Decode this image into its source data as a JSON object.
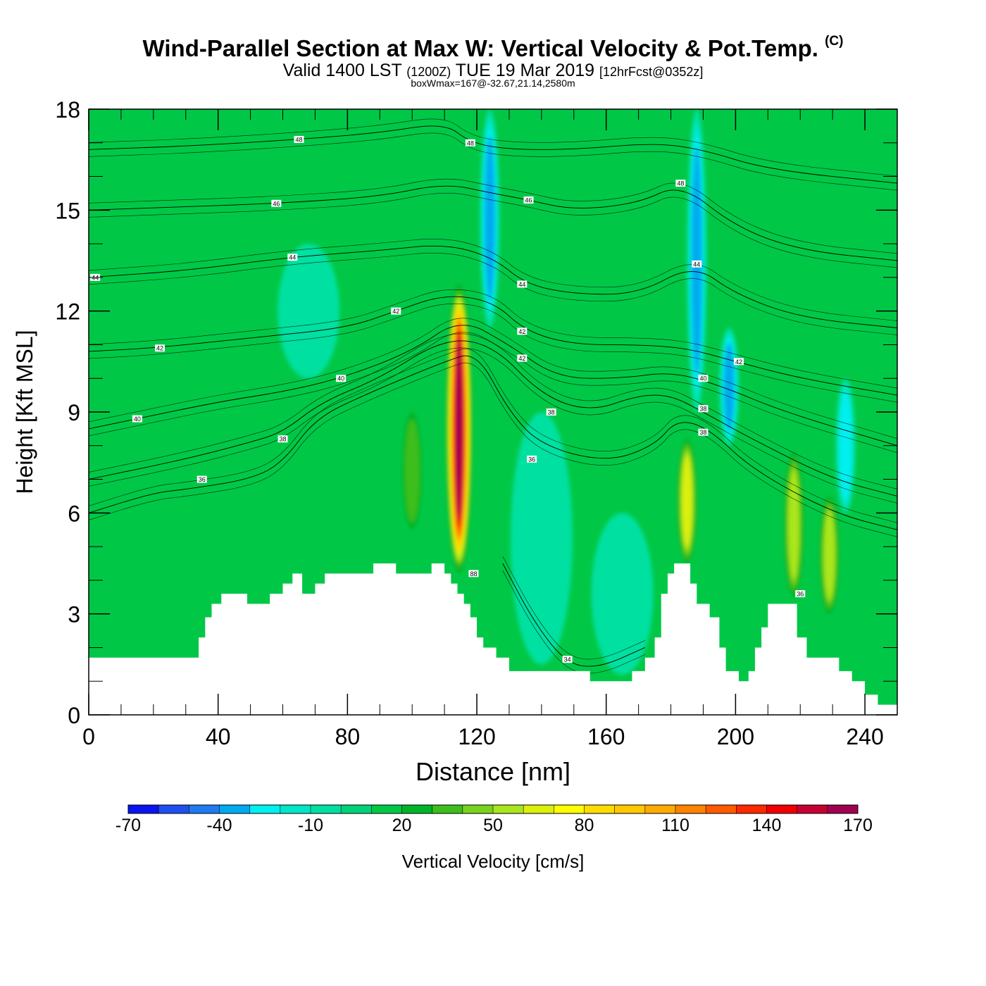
{
  "header": {
    "title": "Wind-Parallel Section at Max W: Vertical Velocity & Pot.Temp.",
    "title_mark": "(C)",
    "valid_prefix": "Valid 1400 LST",
    "valid_utc": "(1200Z)",
    "valid_date": "TUE 19 Mar 2019",
    "forecast_tag": "[12hrFcst@0352z]",
    "box_wmax": "boxWmax=167@-32.67,21.14,2580m"
  },
  "chart_data": {
    "type": "heatmap",
    "xlabel": "Distance [nm]",
    "ylabel": "Height [Kft MSL]",
    "xlim": [
      0,
      250
    ],
    "ylim": [
      0,
      18
    ],
    "xticks": [
      "0",
      "40",
      "80",
      "120",
      "160",
      "200",
      "240"
    ],
    "xtick_values": [
      0,
      40,
      80,
      120,
      160,
      200,
      240
    ],
    "yticks": [
      "0",
      "3",
      "6",
      "9",
      "12",
      "15",
      "18"
    ],
    "ytick_values": [
      0,
      3,
      6,
      9,
      12,
      15,
      18
    ],
    "colorbar": {
      "label": "Vertical Velocity [cm/s]",
      "tick_labels": [
        "-70",
        "-40",
        "-10",
        "20",
        "50",
        "80",
        "110",
        "140",
        "170"
      ],
      "tick_values": [
        -70,
        -40,
        -10,
        20,
        50,
        80,
        110,
        140,
        170
      ],
      "levels": [
        -70,
        -60,
        -50,
        -40,
        -30,
        -20,
        -10,
        0,
        10,
        20,
        30,
        40,
        50,
        60,
        70,
        80,
        90,
        100,
        110,
        120,
        130,
        140,
        150,
        160,
        170
      ],
      "colors": [
        "#0a14f0",
        "#1e50f0",
        "#1e7cf0",
        "#00aaf0",
        "#00f0f0",
        "#00e6c8",
        "#00e0a0",
        "#00d278",
        "#00c846",
        "#00b428",
        "#3cbe1e",
        "#78d21e",
        "#aae61e",
        "#dcf00a",
        "#ffff00",
        "#ffdc00",
        "#ffc800",
        "#ffaa00",
        "#ff8200",
        "#ff5a00",
        "#ff2800",
        "#f00000",
        "#c80032",
        "#a00050"
      ]
    },
    "background_color": "#00c846",
    "terrain_color": "#ffffff",
    "vertical_velocity_features": [
      {
        "kind": "updraft_core",
        "x": 114.5,
        "y_bottom": 4.2,
        "y_top": 12.8,
        "peak_cm_s": 167
      },
      {
        "kind": "updraft",
        "x": 185,
        "y_bottom": 4.5,
        "y_top": 8.2,
        "peak_cm_s": 60
      },
      {
        "kind": "updraft",
        "x": 218,
        "y_bottom": 3.5,
        "y_top": 7.8,
        "peak_cm_s": 55
      },
      {
        "kind": "updraft",
        "x": 229,
        "y_bottom": 3.0,
        "y_top": 6.5,
        "peak_cm_s": 50
      },
      {
        "kind": "updraft",
        "x": 100,
        "y_bottom": 5.5,
        "y_top": 9.0,
        "peak_cm_s": 30
      },
      {
        "kind": "downdraft",
        "x": 124,
        "y_bottom": 11.5,
        "y_top": 18,
        "peak_cm_s": -40
      },
      {
        "kind": "downdraft",
        "x": 188,
        "y_bottom": 9.0,
        "y_top": 18,
        "peak_cm_s": -40
      },
      {
        "kind": "downdraft",
        "x": 198,
        "y_bottom": 8.0,
        "y_top": 11.5,
        "peak_cm_s": -40
      },
      {
        "kind": "downdraft",
        "x": 234,
        "y_bottom": 6.0,
        "y_top": 10.0,
        "peak_cm_s": -30
      },
      {
        "kind": "downdraft_weak",
        "x": 140,
        "y_bottom": 1.5,
        "y_top": 9.0,
        "peak_cm_s": -10
      },
      {
        "kind": "downdraft_weak",
        "x": 165,
        "y_bottom": 1.2,
        "y_top": 6.0,
        "peak_cm_s": -10
      },
      {
        "kind": "downdraft_weak",
        "x": 68,
        "y_bottom": 10.0,
        "y_top": 14.0,
        "peak_cm_s": -10
      }
    ],
    "terrain_profile": [
      [
        0,
        1.7
      ],
      [
        34,
        1.7
      ],
      [
        34,
        2.3
      ],
      [
        36,
        2.3
      ],
      [
        36,
        2.9
      ],
      [
        38,
        2.9
      ],
      [
        38,
        3.3
      ],
      [
        41,
        3.3
      ],
      [
        41,
        3.6
      ],
      [
        49,
        3.6
      ],
      [
        49,
        3.3
      ],
      [
        56,
        3.3
      ],
      [
        56,
        3.6
      ],
      [
        60,
        3.6
      ],
      [
        60,
        3.9
      ],
      [
        63,
        3.9
      ],
      [
        63,
        4.2
      ],
      [
        66,
        4.2
      ],
      [
        66,
        3.6
      ],
      [
        70,
        3.6
      ],
      [
        70,
        3.9
      ],
      [
        73,
        3.9
      ],
      [
        73,
        4.2
      ],
      [
        88,
        4.2
      ],
      [
        88,
        4.5
      ],
      [
        95,
        4.5
      ],
      [
        95,
        4.2
      ],
      [
        106,
        4.2
      ],
      [
        106,
        4.5
      ],
      [
        110,
        4.5
      ],
      [
        110,
        4.2
      ],
      [
        112,
        4.2
      ],
      [
        112,
        3.9
      ],
      [
        114,
        3.9
      ],
      [
        114,
        3.6
      ],
      [
        116,
        3.6
      ],
      [
        116,
        3.3
      ],
      [
        118,
        3.3
      ],
      [
        118,
        2.9
      ],
      [
        120,
        2.9
      ],
      [
        120,
        2.3
      ],
      [
        122,
        2.3
      ],
      [
        122,
        2.0
      ],
      [
        126,
        2.0
      ],
      [
        126,
        1.7
      ],
      [
        130,
        1.7
      ],
      [
        130,
        1.3
      ],
      [
        155,
        1.3
      ],
      [
        155,
        1.0
      ],
      [
        168,
        1.0
      ],
      [
        168,
        1.3
      ],
      [
        172,
        1.3
      ],
      [
        172,
        1.7
      ],
      [
        175,
        1.7
      ],
      [
        175,
        2.3
      ],
      [
        177,
        2.3
      ],
      [
        177,
        3.6
      ],
      [
        179,
        3.6
      ],
      [
        179,
        4.2
      ],
      [
        181,
        4.2
      ],
      [
        181,
        4.5
      ],
      [
        186,
        4.5
      ],
      [
        186,
        3.9
      ],
      [
        188,
        3.9
      ],
      [
        188,
        3.3
      ],
      [
        192,
        3.3
      ],
      [
        192,
        2.9
      ],
      [
        195,
        2.9
      ],
      [
        195,
        2.0
      ],
      [
        197,
        2.0
      ],
      [
        197,
        1.3
      ],
      [
        201,
        1.3
      ],
      [
        201,
        1.0
      ],
      [
        204,
        1.0
      ],
      [
        204,
        1.3
      ],
      [
        206,
        1.3
      ],
      [
        206,
        2.0
      ],
      [
        208,
        2.0
      ],
      [
        208,
        2.6
      ],
      [
        210,
        2.6
      ],
      [
        210,
        3.3
      ],
      [
        219,
        3.3
      ],
      [
        219,
        2.3
      ],
      [
        222,
        2.3
      ],
      [
        222,
        1.7
      ],
      [
        232,
        1.7
      ],
      [
        232,
        1.3
      ],
      [
        236,
        1.3
      ],
      [
        236,
        1.0
      ],
      [
        240,
        1.0
      ],
      [
        240,
        0.6
      ],
      [
        244,
        0.6
      ],
      [
        244,
        0.3
      ],
      [
        250,
        0.3
      ]
    ],
    "theta_contours": [
      {
        "label": "34",
        "points": [
          [
            128,
            4.5
          ],
          [
            138,
            2.7
          ],
          [
            148,
            1.5
          ],
          [
            158,
            1.4
          ],
          [
            172,
            2.0
          ]
        ],
        "label_at": [
          148,
          1.65
        ]
      },
      {
        "label": "36",
        "points": [
          [
            0,
            6.0
          ],
          [
            20,
            6.6
          ],
          [
            30,
            6.7
          ],
          [
            50,
            7.0
          ],
          [
            60,
            7.5
          ],
          [
            70,
            8.8
          ],
          [
            85,
            9.5
          ],
          [
            110,
            10.5
          ],
          [
            120,
            10.8
          ],
          [
            130,
            9.0
          ],
          [
            140,
            8.0
          ],
          [
            160,
            7.5
          ],
          [
            175,
            8.0
          ],
          [
            182,
            8.8
          ],
          [
            192,
            8.5
          ],
          [
            205,
            7.3
          ],
          [
            230,
            6.0
          ],
          [
            250,
            5.5
          ]
        ],
        "label_at": [
          35,
          7.0
        ]
      },
      {
        "label": "38",
        "points": [
          [
            0,
            7.0
          ],
          [
            30,
            7.6
          ],
          [
            50,
            8.1
          ],
          [
            60,
            8.4
          ],
          [
            72,
            9.3
          ],
          [
            90,
            10.0
          ],
          [
            110,
            11.2
          ],
          [
            125,
            11.0
          ],
          [
            140,
            9.5
          ],
          [
            155,
            9.0
          ],
          [
            170,
            9.5
          ],
          [
            180,
            9.5
          ],
          [
            190,
            9.0
          ],
          [
            205,
            8.2
          ],
          [
            230,
            7.0
          ],
          [
            250,
            6.5
          ]
        ],
        "label_at": [
          60,
          8.2
        ]
      },
      {
        "label": "40",
        "points": [
          [
            0,
            8.5
          ],
          [
            15,
            8.8
          ],
          [
            40,
            9.3
          ],
          [
            60,
            9.6
          ],
          [
            78,
            10.0
          ],
          [
            100,
            10.8
          ],
          [
            115,
            11.8
          ],
          [
            130,
            11.0
          ],
          [
            145,
            10.0
          ],
          [
            165,
            10.0
          ],
          [
            180,
            10.2
          ],
          [
            195,
            9.8
          ],
          [
            215,
            9.0
          ],
          [
            250,
            8.0
          ]
        ],
        "label_at": [
          78,
          10.0
        ]
      },
      {
        "label": "42",
        "points": [
          [
            0,
            10.8
          ],
          [
            20,
            10.9
          ],
          [
            50,
            11.2
          ],
          [
            80,
            11.5
          ],
          [
            95,
            12.0
          ],
          [
            110,
            12.5
          ],
          [
            125,
            12.3
          ],
          [
            135,
            11.4
          ],
          [
            150,
            11.0
          ],
          [
            170,
            11.0
          ],
          [
            185,
            10.9
          ],
          [
            200,
            10.5
          ],
          [
            220,
            10.0
          ],
          [
            250,
            9.5
          ]
        ],
        "label_at": [
          95,
          12.0
        ]
      },
      {
        "label": "44",
        "points": [
          [
            0,
            13.0
          ],
          [
            30,
            13.2
          ],
          [
            62,
            13.6
          ],
          [
            90,
            13.8
          ],
          [
            110,
            14.0
          ],
          [
            125,
            13.6
          ],
          [
            135,
            12.8
          ],
          [
            150,
            12.5
          ],
          [
            170,
            12.5
          ],
          [
            187,
            13.4
          ],
          [
            200,
            12.5
          ],
          [
            220,
            11.8
          ],
          [
            250,
            11.5
          ]
        ],
        "label_at": [
          62,
          13.6
        ]
      },
      {
        "label": "46",
        "points": [
          [
            0,
            15.0
          ],
          [
            30,
            15.1
          ],
          [
            58,
            15.2
          ],
          [
            90,
            15.4
          ],
          [
            110,
            15.8
          ],
          [
            125,
            15.5
          ],
          [
            136,
            15.3
          ],
          [
            150,
            15.0
          ],
          [
            170,
            15.2
          ],
          [
            183,
            15.8
          ],
          [
            200,
            14.5
          ],
          [
            220,
            13.8
          ],
          [
            250,
            13.5
          ]
        ],
        "label_at": [
          58,
          15.2
        ]
      },
      {
        "label": "48",
        "points": [
          [
            0,
            16.8
          ],
          [
            30,
            16.9
          ],
          [
            65,
            17.1
          ],
          [
            90,
            17.3
          ],
          [
            110,
            17.6
          ],
          [
            118,
            17.0
          ],
          [
            130,
            16.8
          ],
          [
            150,
            16.8
          ],
          [
            175,
            17.0
          ],
          [
            190,
            16.8
          ],
          [
            210,
            16.2
          ],
          [
            250,
            15.8
          ]
        ],
        "label_at": [
          65,
          17.1
        ]
      }
    ],
    "contour_value_labels": [
      {
        "text": "48",
        "x": 65,
        "y": 17.1
      },
      {
        "text": "48",
        "x": 118,
        "y": 17.0
      },
      {
        "text": "48",
        "x": 183,
        "y": 15.8
      },
      {
        "text": "46",
        "x": 58,
        "y": 15.2
      },
      {
        "text": "46",
        "x": 136,
        "y": 15.3
      },
      {
        "text": "44",
        "x": 2,
        "y": 13.0
      },
      {
        "text": "44",
        "x": 63,
        "y": 13.6
      },
      {
        "text": "44",
        "x": 134,
        "y": 12.8
      },
      {
        "text": "44",
        "x": 188,
        "y": 13.4
      },
      {
        "text": "42",
        "x": 95,
        "y": 12.0
      },
      {
        "text": "42",
        "x": 22,
        "y": 10.9
      },
      {
        "text": "42",
        "x": 134,
        "y": 11.4
      },
      {
        "text": "42",
        "x": 134,
        "y": 10.6
      },
      {
        "text": "42",
        "x": 201,
        "y": 10.5
      },
      {
        "text": "40",
        "x": 78,
        "y": 10.0
      },
      {
        "text": "40",
        "x": 15,
        "y": 8.8
      },
      {
        "text": "40",
        "x": 190,
        "y": 10.0
      },
      {
        "text": "38",
        "x": 60,
        "y": 8.2
      },
      {
        "text": "38",
        "x": 143,
        "y": 9.0
      },
      {
        "text": "38",
        "x": 190,
        "y": 9.1
      },
      {
        "text": "38",
        "x": 190,
        "y": 8.4
      },
      {
        "text": "36",
        "x": 35,
        "y": 7.0
      },
      {
        "text": "36",
        "x": 137,
        "y": 7.6
      },
      {
        "text": "34",
        "x": 148,
        "y": 1.65
      },
      {
        "text": "88",
        "x": 119,
        "y": 4.2
      },
      {
        "text": "36",
        "x": 220,
        "y": 3.6
      }
    ]
  }
}
